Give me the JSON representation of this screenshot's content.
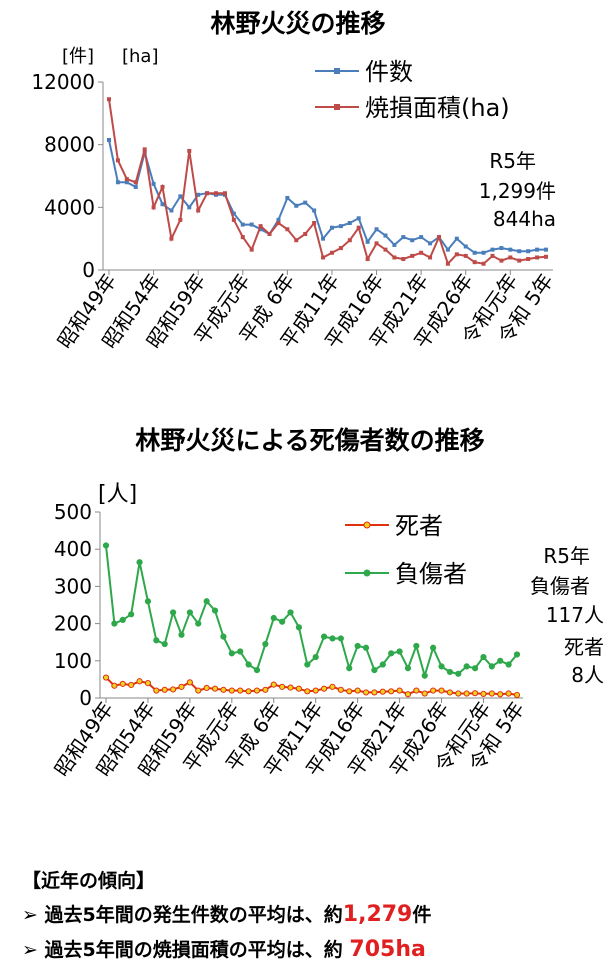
{
  "chart_data": [
    {
      "type": "line",
      "title": "林野火災の推移",
      "ylabel_left": "[件]",
      "ylabel_right": "[ha]",
      "ylim": [
        0,
        12000
      ],
      "yticks": [
        "12000",
        "8000",
        "4000",
        "0"
      ],
      "ytick_values": [
        12000,
        8000,
        4000,
        0
      ],
      "tick_labels": [
        "昭和49年",
        "昭和54年",
        "昭和59年",
        "平成元年",
        "平成 6年",
        "平成11年",
        "平成16年",
        "平成21年",
        "平成26年",
        "令和元年",
        "令和 5年"
      ],
      "tick_index": [
        0,
        5,
        10,
        15,
        20,
        25,
        30,
        35,
        40,
        45,
        49
      ],
      "series": [
        {
          "name": "件数",
          "color": "#4a7ebb",
          "values": [
            8300,
            5600,
            5600,
            5300,
            7500,
            5500,
            4200,
            3800,
            4700,
            4000,
            4800,
            4900,
            4800,
            4800,
            3600,
            2900,
            2900,
            2600,
            2300,
            3200,
            4600,
            4100,
            4300,
            3800,
            2000,
            2700,
            2800,
            3000,
            3300,
            1800,
            2600,
            2200,
            1600,
            2100,
            1900,
            2100,
            1700,
            2100,
            1300,
            2000,
            1500,
            1100,
            1100,
            1300,
            1400,
            1300,
            1200,
            1200,
            1300,
            1300
          ]
        },
        {
          "name": "焼損面積(ha)",
          "color": "#be4b48",
          "values": [
            10900,
            7000,
            5800,
            5600,
            7700,
            4000,
            5300,
            2000,
            3200,
            7600,
            3800,
            4900,
            4900,
            4900,
            3200,
            2100,
            1300,
            2800,
            2300,
            3000,
            2600,
            1900,
            2300,
            3000,
            800,
            1100,
            1400,
            1900,
            2700,
            700,
            1700,
            1300,
            800,
            700,
            900,
            1100,
            800,
            2100,
            400,
            1000,
            900,
            500,
            400,
            900,
            600,
            800,
            600,
            700,
            800,
            844
          ]
        }
      ],
      "annotation": [
        "R5年",
        "1,299件",
        "844ha"
      ]
    },
    {
      "type": "line",
      "title": "林野火災による死傷者数の推移",
      "ylabel": "[人]",
      "ylim": [
        0,
        500
      ],
      "yticks": [
        "500",
        "400",
        "300",
        "200",
        "100",
        "0"
      ],
      "ytick_values": [
        500,
        400,
        300,
        200,
        100,
        0
      ],
      "tick_labels": [
        "昭和49年",
        "昭和54年",
        "昭和59年",
        "平成元年",
        "平成 6年",
        "平成11年",
        "平成16年",
        "平成21年",
        "平成26年",
        "令和元年",
        "令和 5年"
      ],
      "tick_index": [
        0,
        5,
        10,
        15,
        20,
        25,
        30,
        35,
        40,
        45,
        49
      ],
      "series": [
        {
          "name": "死者",
          "color": "#e03010",
          "values": [
            55,
            33,
            38,
            35,
            45,
            40,
            20,
            22,
            23,
            30,
            42,
            20,
            27,
            25,
            22,
            20,
            20,
            18,
            20,
            22,
            36,
            30,
            28,
            25,
            18,
            20,
            25,
            30,
            22,
            18,
            20,
            15,
            15,
            17,
            18,
            20,
            10,
            20,
            12,
            20,
            20,
            15,
            12,
            12,
            13,
            11,
            12,
            10,
            12,
            8
          ]
        },
        {
          "name": "負傷者",
          "color": "#2ea84a",
          "values": [
            410,
            200,
            210,
            225,
            365,
            260,
            155,
            145,
            230,
            170,
            230,
            200,
            260,
            235,
            165,
            120,
            125,
            90,
            75,
            145,
            215,
            205,
            230,
            190,
            90,
            110,
            165,
            160,
            160,
            80,
            140,
            135,
            75,
            90,
            120,
            125,
            80,
            140,
            60,
            135,
            85,
            70,
            65,
            85,
            80,
            110,
            85,
            100,
            90,
            117
          ]
        }
      ],
      "annotation": [
        "R5年",
        "負傷者",
        "117人",
        "死者",
        "8人"
      ]
    }
  ],
  "summary": {
    "header": "【近年の傾向】",
    "items": [
      {
        "bullet": "➢",
        "text": "過去5年間の発生件数の平均は、約",
        "value": "1,279",
        "unit": "件"
      },
      {
        "bullet": "➢",
        "text": "過去5年間の焼損面積の平均は、約",
        "value": "705",
        "unit": "ha"
      }
    ]
  }
}
